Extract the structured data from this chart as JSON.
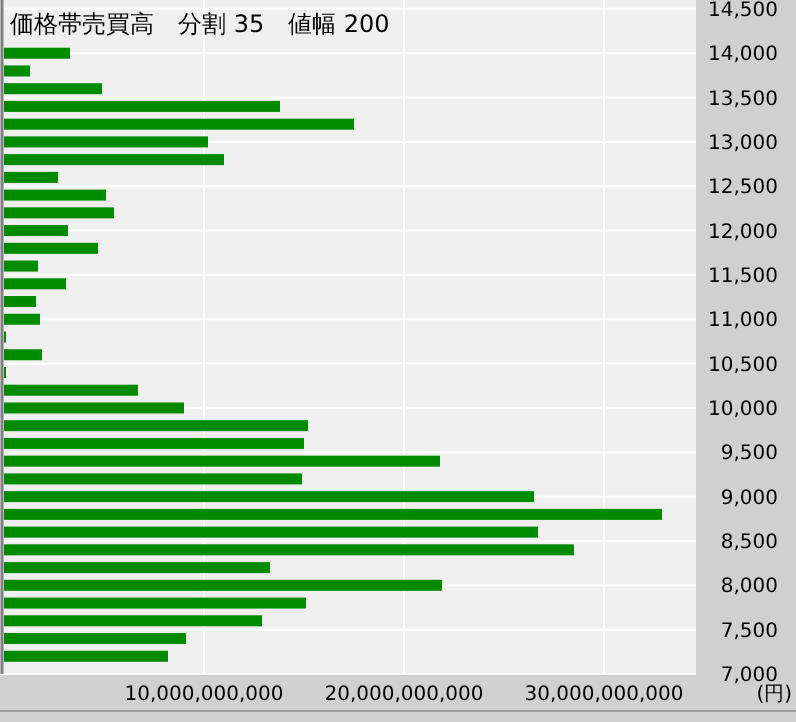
{
  "chart_data": {
    "type": "bar",
    "orientation": "horizontal",
    "title": "価格帯売買高　分割 35　値幅 200",
    "xlabel": "(円)",
    "x": [
      14000,
      13800,
      13600,
      13400,
      13200,
      13000,
      12800,
      12600,
      12400,
      12200,
      12000,
      11800,
      11600,
      11400,
      11200,
      11000,
      10800,
      10600,
      10400,
      10200,
      10000,
      9800,
      9600,
      9400,
      9200,
      9000,
      8800,
      8600,
      8400,
      8200,
      8000,
      7800,
      7600,
      7400,
      7200
    ],
    "values": [
      3300000000,
      1300000000,
      4900000000,
      13800000000,
      17500000000,
      10200000000,
      11000000000,
      2700000000,
      5100000000,
      5500000000,
      3200000000,
      4700000000,
      1700000000,
      3100000000,
      1600000000,
      1800000000,
      100000000,
      1900000000,
      100000000,
      6700000000,
      9000000000,
      15200000000,
      15000000000,
      21800000000,
      14900000000,
      26500000000,
      32900000000,
      26700000000,
      28500000000,
      13300000000,
      21900000000,
      15100000000,
      12900000000,
      9100000000,
      8200000000
    ],
    "color": "#008a00",
    "xlim": [
      0,
      34600000000
    ],
    "xticks": [
      {
        "value": 10000000000,
        "label": "10,000,000,000"
      },
      {
        "value": 20000000000,
        "label": "20,000,000,000"
      },
      {
        "value": 30000000000,
        "label": "30,000,000,000"
      }
    ],
    "ylim": [
      7000,
      14600
    ],
    "yticks": [
      {
        "value": 7000,
        "label": "7,000"
      },
      {
        "value": 7500,
        "label": "7,500"
      },
      {
        "value": 8000,
        "label": "8,000"
      },
      {
        "value": 8500,
        "label": "8,500"
      },
      {
        "value": 9000,
        "label": "9,000"
      },
      {
        "value": 9500,
        "label": "9,500"
      },
      {
        "value": 10000,
        "label": "10,000"
      },
      {
        "value": 10500,
        "label": "10,500"
      },
      {
        "value": 11000,
        "label": "11,000"
      },
      {
        "value": 11500,
        "label": "11,500"
      },
      {
        "value": 12000,
        "label": "12,000"
      },
      {
        "value": 12500,
        "label": "12,500"
      },
      {
        "value": 13000,
        "label": "13,000"
      },
      {
        "value": 13500,
        "label": "13,500"
      },
      {
        "value": 14000,
        "label": "14,000"
      },
      {
        "value": 14500,
        "label": "14,500"
      }
    ],
    "grid": true
  }
}
